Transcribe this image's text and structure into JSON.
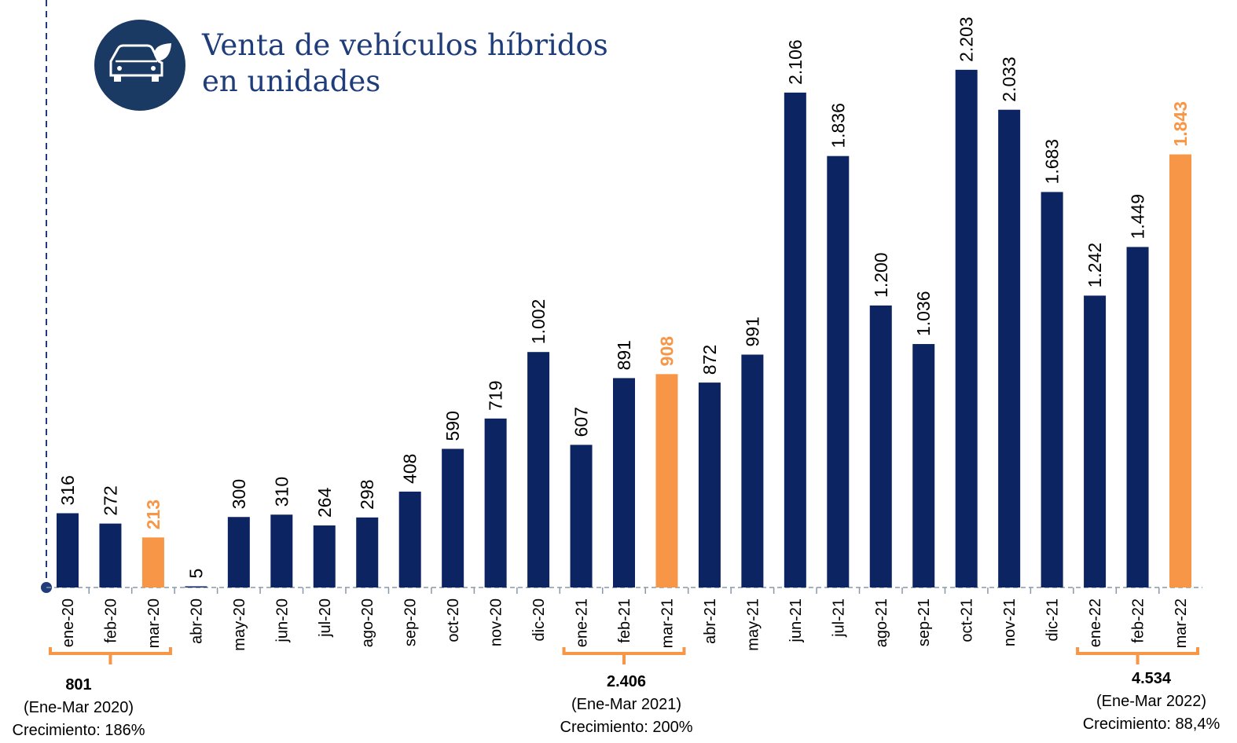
{
  "chart_data": {
    "type": "bar",
    "title": [
      "Venta de vehículos híbridos",
      "en unidades"
    ],
    "categories": [
      "ene-20",
      "feb-20",
      "mar-20",
      "abr-20",
      "may-20",
      "jun-20",
      "jul-20",
      "ago-20",
      "sep-20",
      "oct-20",
      "nov-20",
      "dic-20",
      "ene-21",
      "feb-21",
      "mar-21",
      "abr-21",
      "may-21",
      "jun-21",
      "jul-21",
      "ago-21",
      "sep-21",
      "oct-21",
      "nov-21",
      "dic-21",
      "ene-22",
      "feb-22",
      "mar-22"
    ],
    "values": [
      316,
      272,
      213,
      5,
      300,
      310,
      264,
      298,
      408,
      590,
      719,
      1002,
      607,
      891,
      908,
      872,
      991,
      2106,
      1836,
      1200,
      1036,
      2203,
      2033,
      1683,
      1242,
      1449,
      1843
    ],
    "value_labels": [
      "316",
      "272",
      "213",
      "5",
      "300",
      "310",
      "264",
      "298",
      "408",
      "590",
      "719",
      "1.002",
      "607",
      "891",
      "908",
      "872",
      "991",
      "2.106",
      "1.836",
      "1.200",
      "1.036",
      "2.203",
      "2.033",
      "1.683",
      "1.242",
      "1.449",
      "1.843"
    ],
    "colors": [
      "#0c2461",
      "#0c2461",
      "#f79646",
      "#0c2461",
      "#0c2461",
      "#0c2461",
      "#0c2461",
      "#0c2461",
      "#0c2461",
      "#0c2461",
      "#0c2461",
      "#0c2461",
      "#0c2461",
      "#0c2461",
      "#f79646",
      "#0c2461",
      "#0c2461",
      "#0c2461",
      "#0c2461",
      "#0c2461",
      "#0c2461",
      "#0c2461",
      "#0c2461",
      "#0c2461",
      "#0c2461",
      "#0c2461",
      "#f79646"
    ],
    "ylim": [
      0,
      2500
    ],
    "annotations": [
      {
        "total": "801",
        "period": "(Ene-Mar 2020)",
        "growth": "Crecimiento: 186%"
      },
      {
        "total": "2.406",
        "period": "(Ene-Mar 2021)",
        "growth": "Crecimiento: 200%"
      },
      {
        "total": "4.534",
        "period": "(Ene-Mar  2022)",
        "growth": "Crecimiento: 88,4%"
      }
    ]
  }
}
